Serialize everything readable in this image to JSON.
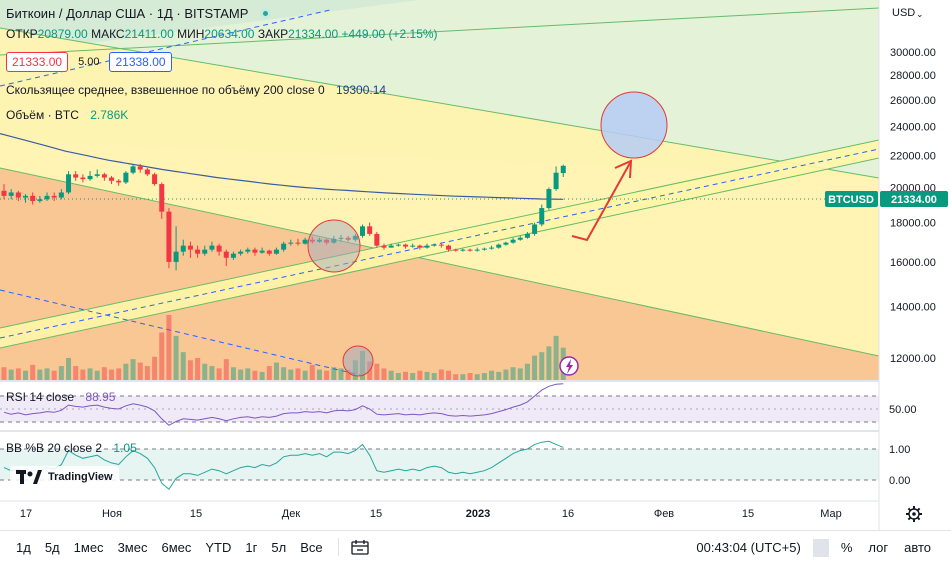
{
  "header": {
    "symbol_title": "Биткоин / Доллар США · 1Д · BITSTAMP",
    "open_label": "ОТКР",
    "open_value": "20879.00",
    "high_label": "МАКС",
    "high_value": "21411.00",
    "low_label": "МИН",
    "low_value": "20634.00",
    "close_label": "ЗАКР",
    "close_value": "21334.00",
    "change": "+449.00 (+2.15%)"
  },
  "quote": {
    "bid": "21333.00",
    "spread": "5.00",
    "ask": "21338.00"
  },
  "indicators": {
    "ma_label": "Скользящее среднее, взвешенное по объёму 200 close 0",
    "ma_value": "19300.14",
    "volume_label": "Объём · BTC",
    "volume_value": "2.786K",
    "rsi_label": "RSI 14 close",
    "rsi_value": "88.95",
    "bb_label": "BB %B 20 close 2",
    "bb_value": "1.05"
  },
  "price_scale": {
    "currency": "USD",
    "ticks": [
      "30000.00",
      "28000.00",
      "26000.00",
      "24000.00",
      "22000.00",
      "20000.00",
      "18000.00",
      "16000.00",
      "14000.00",
      "12000.00"
    ],
    "symbol_tag": "BTCUSD",
    "last_price": "21334.00",
    "rsi_tick": "50.00",
    "bb_ticks": [
      "1.00",
      "0.00"
    ]
  },
  "time_axis": {
    "ticks": [
      "17",
      "Ноя",
      "15",
      "Дек",
      "15",
      "2023",
      "16",
      "Фев",
      "15",
      "Мар"
    ]
  },
  "colors": {
    "up": "#089981",
    "down": "#f23645",
    "ma": "#3b5ba6",
    "rsi": "#7e57c2",
    "bb": "#26a69a"
  },
  "branding": {
    "logo_text": "TradingView"
  },
  "toolbar": {
    "periods": [
      "1д",
      "5д",
      "1мес",
      "3мес",
      "6мес",
      "YTD",
      "1г",
      "5л",
      "Все"
    ],
    "clock": "00:43:04 (UTC+5)",
    "percent": "%",
    "log": "лог",
    "auto": "авто"
  },
  "chart_data": {
    "type": "candlestick",
    "title": "Биткоин / Доллар США · 1Д · BITSTAMP",
    "y_scale": "log",
    "ylim": [
      11000,
      32000
    ],
    "xlabel": "",
    "ylabel": "",
    "series": [
      {
        "name": "BTCUSD",
        "ohlc": [
          [
            19800,
            19500,
            20200,
            19300
          ],
          [
            19500,
            19700,
            19900,
            19300
          ],
          [
            19700,
            19400,
            19800,
            19200
          ],
          [
            19400,
            19500,
            19600,
            19100
          ],
          [
            19500,
            19200,
            19700,
            19000
          ],
          [
            19200,
            19300,
            19500,
            19100
          ],
          [
            19300,
            19500,
            19700,
            19200
          ],
          [
            19500,
            19400,
            19700,
            19200
          ],
          [
            19400,
            19700,
            19900,
            19300
          ],
          [
            19700,
            20800,
            21000,
            19600
          ],
          [
            20800,
            20600,
            21000,
            20400
          ],
          [
            20600,
            20500,
            20800,
            20300
          ],
          [
            20500,
            20700,
            21000,
            20400
          ],
          [
            20700,
            20800,
            21100,
            20600
          ],
          [
            20800,
            20600,
            20900,
            20400
          ],
          [
            20600,
            20400,
            20700,
            20200
          ],
          [
            20400,
            20300,
            20500,
            20100
          ],
          [
            20300,
            20900,
            21000,
            20200
          ],
          [
            20900,
            21300,
            21400,
            20800
          ],
          [
            21300,
            21100,
            21450,
            20900
          ],
          [
            21100,
            20800,
            21200,
            20700
          ],
          [
            20800,
            20200,
            20900,
            20100
          ],
          [
            20200,
            18600,
            20300,
            18200
          ],
          [
            18600,
            16000,
            18800,
            15700
          ],
          [
            16000,
            16500,
            17800,
            15600
          ],
          [
            16500,
            16800,
            17100,
            16300
          ],
          [
            16800,
            16600,
            17000,
            16200
          ],
          [
            16600,
            16400,
            16800,
            16200
          ],
          [
            16400,
            16600,
            16800,
            16300
          ],
          [
            16600,
            16800,
            17000,
            16500
          ],
          [
            16800,
            16500,
            16900,
            16300
          ],
          [
            16500,
            16200,
            16600,
            15800
          ],
          [
            16200,
            16400,
            16500,
            16100
          ],
          [
            16400,
            16500,
            16600,
            16300
          ],
          [
            16500,
            16600,
            16700,
            16400
          ],
          [
            16600,
            16450,
            16700,
            16300
          ],
          [
            16450,
            16550,
            16700,
            16400
          ],
          [
            16550,
            16400,
            16600,
            16300
          ],
          [
            16400,
            16600,
            16700,
            16350
          ],
          [
            16600,
            16900,
            17000,
            16500
          ],
          [
            16900,
            16950,
            17100,
            16800
          ],
          [
            16950,
            16900,
            17150,
            16800
          ],
          [
            16900,
            17100,
            17200,
            16850
          ],
          [
            17100,
            17000,
            17250,
            16900
          ],
          [
            17000,
            17100,
            17200,
            16950
          ],
          [
            17100,
            16950,
            17150,
            16850
          ],
          [
            16950,
            17150,
            17300,
            16900
          ],
          [
            17150,
            17200,
            17350,
            17000
          ],
          [
            17200,
            17100,
            17300,
            17000
          ],
          [
            17100,
            17300,
            17400,
            17000
          ],
          [
            17300,
            17800,
            17900,
            17200
          ],
          [
            17800,
            17400,
            18000,
            17300
          ],
          [
            17400,
            16800,
            17500,
            16700
          ],
          [
            16800,
            16700,
            16900,
            16600
          ],
          [
            16700,
            16800,
            16900,
            16700
          ],
          [
            16800,
            16850,
            16900,
            16750
          ],
          [
            16850,
            16750,
            16900,
            16650
          ],
          [
            16750,
            16800,
            16900,
            16700
          ],
          [
            16800,
            16700,
            16850,
            16600
          ],
          [
            16700,
            16800,
            16900,
            16650
          ],
          [
            16800,
            16850,
            16900,
            16750
          ],
          [
            16850,
            16800,
            16950,
            16700
          ],
          [
            16800,
            16600,
            16850,
            16500
          ],
          [
            16600,
            16550,
            16650,
            16500
          ],
          [
            16550,
            16600,
            16650,
            16500
          ],
          [
            16600,
            16550,
            16650,
            16500
          ],
          [
            16550,
            16600,
            16700,
            16500
          ],
          [
            16600,
            16650,
            16700,
            16550
          ],
          [
            16650,
            16700,
            16800,
            16600
          ],
          [
            16700,
            16850,
            16900,
            16650
          ],
          [
            16850,
            16950,
            17000,
            16800
          ],
          [
            16950,
            17100,
            17200,
            16900
          ],
          [
            17100,
            17200,
            17300,
            17050
          ],
          [
            17200,
            17400,
            17500,
            17150
          ],
          [
            17400,
            17900,
            18000,
            17300
          ],
          [
            17900,
            18800,
            19000,
            17800
          ],
          [
            18800,
            19900,
            20000,
            18700
          ],
          [
            19900,
            20900,
            21300,
            19800
          ],
          [
            20879,
            21334,
            21411,
            20634
          ]
        ]
      },
      {
        "name": "Скользящее среднее, взвешенное по объёму 200 close 0",
        "values": [
          23500,
          23300,
          23100,
          22900,
          22700,
          22500,
          22300,
          22150,
          22000,
          21850,
          21700,
          21580,
          21460,
          21340,
          21220,
          21100,
          21000,
          20900,
          20800,
          20700,
          20600,
          20520,
          20440,
          20360,
          20280,
          20200,
          20130,
          20060,
          20000,
          19950,
          19900,
          19860,
          19820,
          19780,
          19740,
          19700,
          19660,
          19630,
          19600,
          19570,
          19540,
          19510,
          19480,
          19460,
          19440,
          19420,
          19400,
          19380,
          19360,
          19340,
          19320,
          19310,
          19300
        ]
      },
      {
        "name": "Объём · BTC",
        "values": [
          1.1,
          0.9,
          1.0,
          0.8,
          1.3,
          0.9,
          1.0,
          0.8,
          1.2,
          1.9,
          1.2,
          0.9,
          1.0,
          0.8,
          1.1,
          0.9,
          1.0,
          1.4,
          1.8,
          1.5,
          1.2,
          2.0,
          4.1,
          5.6,
          3.8,
          2.4,
          1.7,
          1.9,
          1.4,
          1.2,
          1.0,
          1.8,
          1.1,
          0.9,
          1.0,
          0.8,
          0.7,
          1.2,
          1.5,
          1.1,
          0.9,
          1.0,
          0.8,
          1.3,
          0.9,
          0.8,
          1.1,
          1.0,
          0.9,
          1.7,
          2.5,
          1.6,
          1.4,
          1.0,
          0.8,
          0.6,
          0.7,
          0.6,
          0.8,
          0.7,
          0.6,
          0.9,
          0.8,
          0.5,
          0.5,
          0.6,
          0.5,
          0.6,
          0.8,
          0.7,
          0.9,
          1.1,
          1.0,
          1.4,
          2.1,
          2.4,
          2.9,
          3.8,
          2.786
        ]
      },
      {
        "name": "RSI 14 close",
        "values": [
          45,
          42,
          44,
          41,
          43,
          44,
          46,
          45,
          48,
          56,
          54,
          53,
          55,
          56,
          53,
          51,
          50,
          55,
          58,
          56,
          53,
          47,
          35,
          25,
          31,
          35,
          34,
          33,
          35,
          37,
          35,
          32,
          35,
          37,
          38,
          36,
          38,
          37,
          39,
          43,
          44,
          44,
          46,
          45,
          46,
          44,
          47,
          48,
          47,
          49,
          55,
          50,
          42,
          41,
          42,
          43,
          41,
          42,
          41,
          43,
          44,
          43,
          40,
          39,
          40,
          39,
          40,
          41,
          43,
          46,
          49,
          53,
          56,
          61,
          70,
          79,
          85,
          88,
          88.95
        ]
      },
      {
        "name": "BB %B 20 close 2",
        "values": [
          0.4,
          0.3,
          0.35,
          0.2,
          0.3,
          0.3,
          0.4,
          0.35,
          0.5,
          0.95,
          0.8,
          0.7,
          0.75,
          0.8,
          0.65,
          0.55,
          0.5,
          0.75,
          0.95,
          0.85,
          0.7,
          0.4,
          -0.1,
          -0.3,
          0.05,
          0.2,
          0.2,
          0.15,
          0.25,
          0.35,
          0.3,
          0.2,
          0.3,
          0.4,
          0.45,
          0.4,
          0.5,
          0.45,
          0.55,
          0.75,
          0.8,
          0.8,
          0.85,
          0.8,
          0.85,
          0.75,
          0.9,
          0.9,
          0.85,
          0.95,
          1.15,
          0.8,
          0.3,
          0.25,
          0.3,
          0.35,
          0.3,
          0.35,
          0.3,
          0.4,
          0.45,
          0.4,
          0.25,
          0.2,
          0.25,
          0.2,
          0.25,
          0.3,
          0.4,
          0.55,
          0.7,
          0.85,
          0.95,
          1.0,
          1.15,
          1.22,
          1.25,
          1.15,
          1.05
        ]
      }
    ],
    "x_ticks": [
      "17",
      "Ноя",
      "15",
      "Дек",
      "15",
      "2023",
      "16",
      "Фев",
      "15",
      "Мар"
    ],
    "y_ticks": [
      30000,
      28000,
      26000,
      24000,
      22000,
      20000,
      18000,
      16000,
      14000,
      12000
    ],
    "last_price": 21334,
    "grid": false
  }
}
